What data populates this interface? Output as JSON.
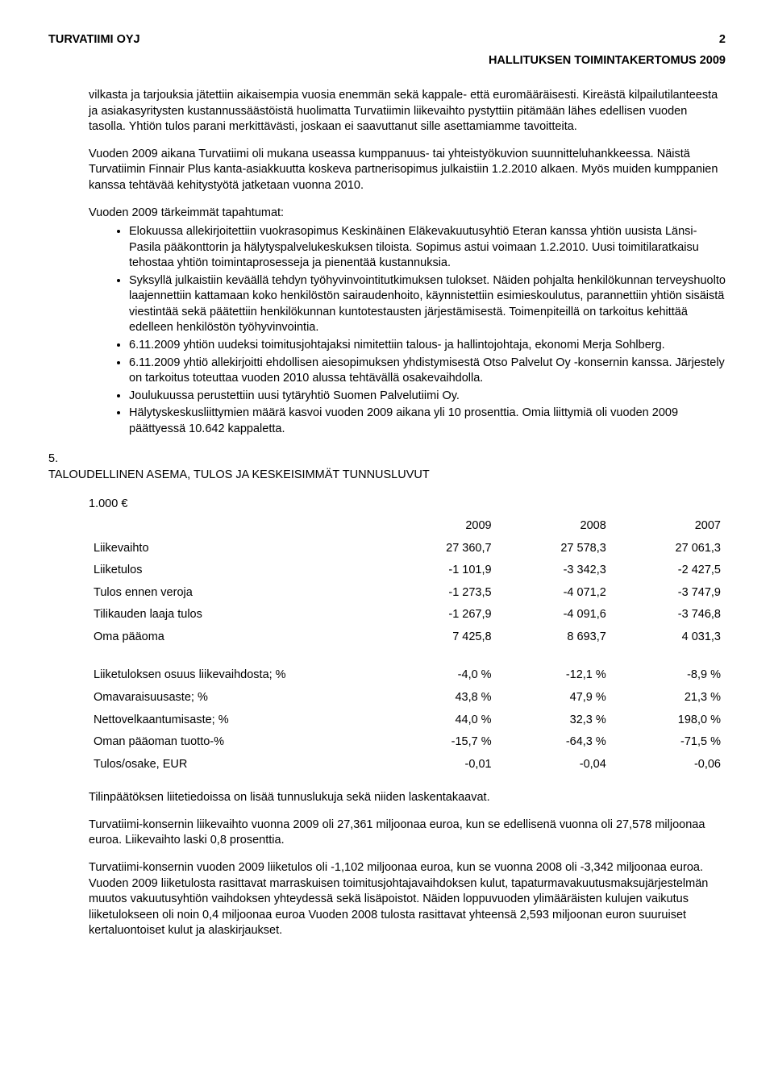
{
  "header": {
    "company": "TURVATIIMI OYJ",
    "page_number": "2",
    "title": "HALLITUKSEN TOIMINTAKERTOMUS 2009"
  },
  "paragraphs": {
    "p1": "vilkasta ja tarjouksia jätettiin aikaisempia vuosia enemmän sekä kappale- että euromääräisesti. Kireästä kilpailutilanteesta ja asiakasyritysten kustannussäästöistä huolimatta Turvatiimin liikevaihto pystyttiin pitämään lähes edellisen vuoden tasolla. Yhtiön tulos parani merkittävästi, joskaan ei saavuttanut sille asettamiamme tavoitteita.",
    "p2": "Vuoden 2009 aikana Turvatiimi oli mukana useassa kumppanuus- tai yhteistyökuvion suunnitteluhankkeessa. Näistä Turvatiimin Finnair Plus kanta-asiakkuutta koskeva partnerisopimus julkaistiin 1.2.2010 alkaen. Myös muiden kumppanien kanssa tehtävää kehitystyötä jatketaan vuonna 2010.",
    "p3": "Vuoden 2009 tärkeimmät tapahtumat:"
  },
  "bullets": [
    "Elokuussa allekirjoitettiin vuokrasopimus Keskinäinen Eläkevakuutusyhtiö Eteran kanssa yhtiön uusista Länsi-Pasila pääkonttorin ja hälytyspalvelukeskuksen tiloista. Sopimus astui voimaan 1.2.2010. Uusi toimitilaratkaisu tehostaa yhtiön toimintaprosesseja ja pienentää kustannuksia.",
    "Syksyllä julkaistiin keväällä tehdyn työhyvinvointitutkimuksen tulokset. Näiden pohjalta henkilökunnan terveyshuolto laajennettiin kattamaan koko henkilöstön sairaudenhoito, käynnistettiin esimieskoulutus, parannettiin yhtiön sisäistä viestintää sekä päätettiin henkilökunnan kuntotestausten järjestämisestä. Toimenpiteillä on tarkoitus kehittää edelleen henkilöstön työhyvinvointia.",
    "6.11.2009 yhtiön uudeksi toimitusjohtajaksi nimitettiin talous- ja hallintojohtaja, ekonomi Merja Sohlberg.",
    "6.11.2009 yhtiö allekirjoitti ehdollisen aiesopimuksen yhdistymisestä Otso Palvelut Oy -konsernin kanssa. Järjestely on tarkoitus toteuttaa vuoden 2010 alussa tehtävällä osakevaihdolla.",
    "Joulukuussa perustettiin uusi tytäryhtiö Suomen Palvelutiimi Oy.",
    "Hälytyskeskusliittymien määrä kasvoi vuoden 2009 aikana yli 10 prosenttia. Omia liittymiä oli vuoden 2009 päättyessä 10.642 kappaletta."
  ],
  "section5": {
    "num": "5.",
    "title": "TALOUDELLINEN ASEMA, TULOS JA KESKEISIMMÄT TUNNUSLUVUT",
    "unit": "1.000 €"
  },
  "table": {
    "headers": [
      "",
      "2009",
      "2008",
      "2007"
    ],
    "rows1": [
      [
        "Liikevaihto",
        "27 360,7",
        "27 578,3",
        "27 061,3"
      ],
      [
        "Liiketulos",
        "-1 101,9",
        "-3 342,3",
        "-2 427,5"
      ],
      [
        "Tulos ennen veroja",
        "-1 273,5",
        "-4 071,2",
        "-3 747,9"
      ],
      [
        "Tilikauden laaja tulos",
        "-1 267,9",
        "-4 091,6",
        "-3 746,8"
      ],
      [
        "Oma pääoma",
        "7 425,8",
        "8 693,7",
        "4 031,3"
      ]
    ],
    "rows2": [
      [
        "Liiketuloksen osuus liikevaihdosta; %",
        "-4,0 %",
        "-12,1 %",
        "-8,9 %"
      ],
      [
        "Omavaraisuusaste; %",
        "43,8 %",
        "47,9 %",
        "21,3 %"
      ],
      [
        "Nettovelkaantumisaste; %",
        "44,0 %",
        "32,3 %",
        "198,0 %"
      ],
      [
        "Oman pääoman tuotto-%",
        "-15,7 %",
        "-64,3 %",
        "-71,5 %"
      ],
      [
        "Tulos/osake, EUR",
        "-0,01",
        "-0,04",
        "-0,06"
      ]
    ]
  },
  "footer": {
    "f1": "Tilinpäätöksen liitetiedoissa on lisää tunnuslukuja sekä niiden laskentakaavat.",
    "f2": "Turvatiimi-konsernin liikevaihto vuonna 2009 oli 27,361 miljoonaa euroa, kun se edellisenä vuonna oli 27,578 miljoonaa euroa. Liikevaihto laski 0,8 prosenttia.",
    "f3": "Turvatiimi-konsernin vuoden 2009 liiketulos oli -1,102 miljoonaa euroa, kun se vuonna 2008 oli -3,342 miljoonaa euroa. Vuoden 2009 liiketulosta rasittavat marraskuisen toimitusjohtajavaihdoksen kulut, tapaturmavakuutusmaksujärjestelmän muutos vakuutusyhtiön vaihdoksen yhteydessä sekä lisäpoistot. Näiden loppuvuoden ylimääräisten kulujen vaikutus liiketulokseen oli noin 0,4 miljoonaa euroa Vuoden 2008 tulosta rasittavat yhteensä 2,593 miljoonan euron suuruiset kertaluontoiset kulut ja alaskirjaukset."
  }
}
